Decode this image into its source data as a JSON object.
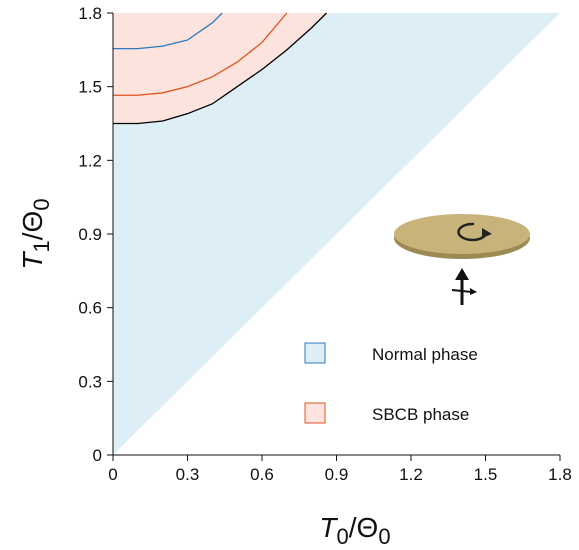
{
  "chart_data": {
    "type": "line",
    "x_label": [
      "T",
      "0",
      "/Θ",
      "0"
    ],
    "y_label": [
      "T",
      "1",
      "/Θ",
      "0"
    ],
    "xlim": [
      0,
      1.8
    ],
    "ylim": [
      0,
      1.8
    ],
    "xticks": [
      0,
      0.3,
      0.6,
      0.9,
      1.2,
      1.5,
      1.8
    ],
    "yticks": [
      0,
      0.3,
      0.6,
      0.9,
      1.2,
      1.5,
      1.8
    ],
    "regions": [
      {
        "name": "Normal phase",
        "color": "#ddeef6",
        "edge": "#2a7bbf"
      },
      {
        "name": "SBCB phase",
        "color": "#fde3dd",
        "edge": "#e0531e"
      }
    ],
    "series": [
      {
        "color": "#000000",
        "x": [
          0,
          0.1,
          0.2,
          0.3,
          0.4,
          0.5,
          0.6,
          0.7,
          0.8,
          0.86
        ],
        "values": [
          1.35,
          1.35,
          1.36,
          1.39,
          1.43,
          1.5,
          1.57,
          1.65,
          1.74,
          1.8
        ]
      },
      {
        "color": "#e0531e",
        "x": [
          0,
          0.1,
          0.2,
          0.3,
          0.4,
          0.5,
          0.6,
          0.7
        ],
        "values": [
          1.465,
          1.465,
          1.475,
          1.5,
          1.54,
          1.6,
          1.68,
          1.8
        ]
      },
      {
        "color": "#2a7bbf",
        "x": [
          0,
          0.1,
          0.2,
          0.3,
          0.4,
          0.44
        ],
        "values": [
          1.655,
          1.655,
          1.665,
          1.69,
          1.76,
          1.8
        ]
      }
    ]
  }
}
